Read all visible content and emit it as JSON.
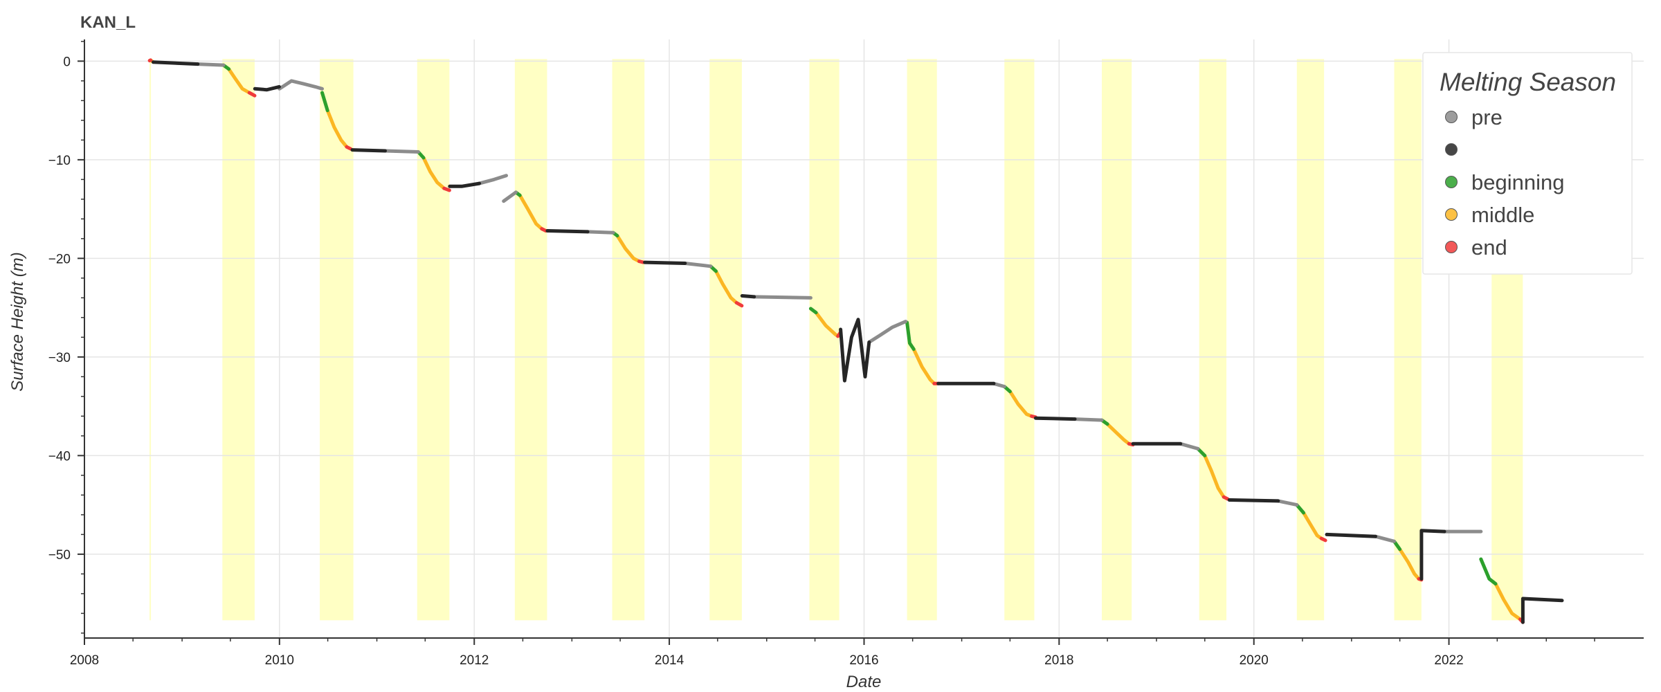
{
  "chart_data": {
    "type": "scatter",
    "title": "KAN_L",
    "xlabel": "Date",
    "ylabel": "Surface Height (m)",
    "xlim": [
      "2008-01-01",
      "2024-01-01"
    ],
    "ylim": [
      -58.5,
      2.2
    ],
    "grid": true,
    "x_ticks": [
      "2008",
      "2010",
      "2012",
      "2014",
      "2016",
      "2018",
      "2020",
      "2022"
    ],
    "y_ticks": [
      0,
      -10,
      -20,
      -30,
      -40,
      -50
    ],
    "y_tick_labels": [
      "0",
      "−10",
      "−20",
      "−30",
      "−40",
      "−50"
    ],
    "legend": {
      "title": "Melting Season",
      "position": "top-right",
      "entries": [
        {
          "label": "pre",
          "color": "#8c8c8c"
        },
        {
          "label": "",
          "color": "#262626"
        },
        {
          "label": "beginning",
          "color": "#2ca02c"
        },
        {
          "label": "middle",
          "color": "#fbb623"
        },
        {
          "label": "end",
          "color": "#f03b3b"
        }
      ]
    },
    "melt_band_color": "#ffffc4",
    "melt_bands": [
      [
        "2008-09-01",
        "2008-09-05"
      ],
      [
        "2009-06-01",
        "2009-09-30"
      ],
      [
        "2010-06-01",
        "2010-10-05"
      ],
      [
        "2011-06-01",
        "2011-09-30"
      ],
      [
        "2012-06-01",
        "2012-09-30"
      ],
      [
        "2013-06-01",
        "2013-09-30"
      ],
      [
        "2014-06-01",
        "2014-09-30"
      ],
      [
        "2015-06-10",
        "2015-09-30"
      ],
      [
        "2016-06-10",
        "2016-09-30"
      ],
      [
        "2017-06-10",
        "2017-09-30"
      ],
      [
        "2018-06-10",
        "2018-09-30"
      ],
      [
        "2019-06-10",
        "2019-09-20"
      ],
      [
        "2020-06-10",
        "2020-09-20"
      ],
      [
        "2021-06-10",
        "2021-09-20"
      ],
      [
        "2022-06-10",
        "2022-10-05"
      ]
    ],
    "series": [
      {
        "category": "middle",
        "color": "#fbb623",
        "segments": [
          [
            [
              "2008-09-05",
              0.1
            ],
            [
              "2008-09-15",
              -0.1
            ]
          ],
          [
            [
              "2009-06-25",
              -0.8
            ],
            [
              "2009-07-20",
              -1.8
            ],
            [
              "2009-08-15",
              -2.8
            ],
            [
              "2009-09-10",
              -3.2
            ]
          ],
          [
            [
              "2010-06-30",
              -5.0
            ],
            [
              "2010-07-25",
              -6.7
            ],
            [
              "2010-08-20",
              -8.0
            ],
            [
              "2010-09-10",
              -8.7
            ]
          ],
          [
            [
              "2011-06-25",
              -9.8
            ],
            [
              "2011-07-20",
              -11.2
            ],
            [
              "2011-08-15",
              -12.3
            ],
            [
              "2011-09-10",
              -12.9
            ]
          ],
          [
            [
              "2012-06-20",
              -13.6
            ],
            [
              "2012-07-20",
              -15.0
            ],
            [
              "2012-08-20",
              -16.5
            ],
            [
              "2012-09-10",
              -17.0
            ]
          ],
          [
            [
              "2013-06-20",
              -17.7
            ],
            [
              "2013-07-20",
              -19.0
            ],
            [
              "2013-08-20",
              -20.0
            ],
            [
              "2013-09-10",
              -20.3
            ]
          ],
          [
            [
              "2014-06-25",
              -21.3
            ],
            [
              "2014-07-20",
              -22.6
            ],
            [
              "2014-08-20",
              -24.0
            ],
            [
              "2014-09-10",
              -24.5
            ]
          ],
          [
            [
              "2015-07-05",
              -25.5
            ],
            [
              "2015-08-10",
              -26.8
            ],
            [
              "2015-09-15",
              -27.7
            ],
            [
              "2015-09-25",
              -27.9
            ]
          ],
          [
            [
              "2016-07-05",
              -29.2
            ],
            [
              "2016-08-05",
              -31.0
            ],
            [
              "2016-09-05",
              -32.3
            ],
            [
              "2016-09-20",
              -32.7
            ]
          ],
          [
            [
              "2017-07-01",
              -33.5
            ],
            [
              "2017-08-01",
              -34.8
            ],
            [
              "2017-09-01",
              -35.8
            ],
            [
              "2017-09-20",
              -36.0
            ]
          ],
          [
            [
              "2018-07-01",
              -36.8
            ],
            [
              "2018-08-01",
              -37.6
            ],
            [
              "2018-09-01",
              -38.4
            ],
            [
              "2018-09-20",
              -38.8
            ]
          ],
          [
            [
              "2019-07-01",
              -40.0
            ],
            [
              "2019-07-25",
              -41.5
            ],
            [
              "2019-08-20",
              -43.3
            ],
            [
              "2019-09-10",
              -44.2
            ]
          ],
          [
            [
              "2020-07-05",
              -45.8
            ],
            [
              "2020-08-05",
              -47.2
            ],
            [
              "2020-08-25",
              -48.1
            ],
            [
              "2020-09-10",
              -48.4
            ]
          ],
          [
            [
              "2021-07-01",
              -49.5
            ],
            [
              "2021-08-01",
              -50.8
            ],
            [
              "2021-08-25",
              -52.0
            ],
            [
              "2021-09-10",
              -52.5
            ]
          ],
          [
            [
              "2022-06-25",
              -53.0
            ],
            [
              "2022-07-25",
              -54.6
            ],
            [
              "2022-08-25",
              -56.0
            ],
            [
              "2022-09-25",
              -56.6
            ]
          ]
        ]
      },
      {
        "category": "beginning",
        "color": "#2ca02c",
        "segments": [
          [
            [
              "2009-06-05",
              -0.4
            ],
            [
              "2009-06-25",
              -0.8
            ]
          ],
          [
            [
              "2010-06-10",
              -3.2
            ],
            [
              "2010-06-30",
              -5.0
            ]
          ],
          [
            [
              "2011-06-05",
              -9.2
            ],
            [
              "2011-06-25",
              -9.8
            ]
          ],
          [
            [
              "2012-06-05",
              -13.3
            ],
            [
              "2012-06-20",
              -13.6
            ]
          ],
          [
            [
              "2013-06-05",
              -17.4
            ],
            [
              "2013-06-20",
              -17.7
            ]
          ],
          [
            [
              "2014-06-05",
              -20.8
            ],
            [
              "2014-06-25",
              -21.3
            ]
          ],
          [
            [
              "2015-06-15",
              -25.1
            ],
            [
              "2015-07-05",
              -25.5
            ]
          ],
          [
            [
              "2016-06-10",
              -26.5
            ],
            [
              "2016-06-20",
              -28.6
            ],
            [
              "2016-07-05",
              -29.2
            ]
          ],
          [
            [
              "2017-06-10",
              -33.0
            ],
            [
              "2017-07-01",
              -33.5
            ]
          ],
          [
            [
              "2018-06-10",
              -36.4
            ],
            [
              "2018-07-01",
              -36.8
            ]
          ],
          [
            [
              "2019-06-05",
              -39.3
            ],
            [
              "2019-07-01",
              -40.0
            ]
          ],
          [
            [
              "2020-06-10",
              -45.0
            ],
            [
              "2020-07-05",
              -45.8
            ]
          ],
          [
            [
              "2021-06-10",
              -48.7
            ],
            [
              "2021-07-01",
              -49.5
            ]
          ],
          [
            [
              "2022-05-01",
              -50.5
            ],
            [
              "2022-06-01",
              -52.5
            ],
            [
              "2022-06-25",
              -53.0
            ]
          ]
        ]
      },
      {
        "category": "end",
        "color": "#f03b3b",
        "segments": [
          [
            [
              "2008-09-01",
              0.05
            ],
            [
              "2008-09-05",
              0.1
            ]
          ],
          [
            [
              "2009-09-10",
              -3.2
            ],
            [
              "2009-09-30",
              -3.5
            ]
          ],
          [
            [
              "2010-09-10",
              -8.7
            ],
            [
              "2010-09-25",
              -8.9
            ]
          ],
          [
            [
              "2011-09-10",
              -12.9
            ],
            [
              "2011-09-30",
              -13.1
            ]
          ],
          [
            [
              "2012-09-10",
              -17.0
            ],
            [
              "2012-09-25",
              -17.2
            ]
          ],
          [
            [
              "2013-09-10",
              -20.3
            ],
            [
              "2013-09-25",
              -20.4
            ]
          ],
          [
            [
              "2014-09-10",
              -24.5
            ],
            [
              "2014-09-30",
              -24.8
            ]
          ],
          [
            [
              "2015-09-25",
              -27.9
            ],
            [
              "2015-10-05",
              -27.5
            ]
          ],
          [
            [
              "2016-09-20",
              -32.7
            ],
            [
              "2016-10-05",
              -32.7
            ]
          ],
          [
            [
              "2017-09-20",
              -36.0
            ],
            [
              "2017-10-05",
              -36.1
            ]
          ],
          [
            [
              "2018-09-20",
              -38.8
            ],
            [
              "2018-10-05",
              -38.9
            ]
          ],
          [
            [
              "2019-09-10",
              -44.2
            ],
            [
              "2019-09-25",
              -44.4
            ]
          ],
          [
            [
              "2020-09-10",
              -48.4
            ],
            [
              "2020-09-25",
              -48.6
            ]
          ],
          [
            [
              "2021-09-10",
              -52.5
            ],
            [
              "2021-09-20",
              -52.6
            ]
          ],
          [
            [
              "2022-09-25",
              -56.6
            ],
            [
              "2022-10-05",
              -56.9
            ]
          ]
        ]
      },
      {
        "category": "pre",
        "color": "#8c8c8c",
        "segments": [
          [
            [
              "2009-03-01",
              -0.3
            ],
            [
              "2009-06-05",
              -0.4
            ]
          ],
          [
            [
              "2010-01-01",
              -2.8
            ],
            [
              "2010-02-15",
              -2.0
            ],
            [
              "2010-04-01",
              -2.3
            ],
            [
              "2010-05-15",
              -2.6
            ],
            [
              "2010-06-10",
              -2.8
            ]
          ],
          [
            [
              "2011-02-01",
              -9.1
            ],
            [
              "2011-06-05",
              -9.2
            ]
          ],
          [
            [
              "2012-01-20",
              -12.4
            ],
            [
              "2012-03-15",
              -12.0
            ],
            [
              "2012-04-30",
              -11.6
            ]
          ],
          [
            [
              "2012-04-20",
              -14.2
            ],
            [
              "2012-06-05",
              -13.3
            ]
          ],
          [
            [
              "2013-03-01",
              -17.3
            ],
            [
              "2013-06-05",
              -17.4
            ]
          ],
          [
            [
              "2014-03-01",
              -20.5
            ],
            [
              "2014-06-05",
              -20.8
            ]
          ],
          [
            [
              "2014-11-15",
              -23.9
            ],
            [
              "2015-06-15",
              -24.0
            ]
          ],
          [
            [
              "2016-01-20",
              -28.5
            ],
            [
              "2016-03-01",
              -27.8
            ],
            [
              "2016-04-15",
              -27.0
            ],
            [
              "2016-06-05",
              -26.4
            ]
          ],
          [
            [
              "2017-05-01",
              -32.7
            ],
            [
              "2017-06-10",
              -33.0
            ]
          ],
          [
            [
              "2018-03-01",
              -36.3
            ],
            [
              "2018-06-10",
              -36.4
            ]
          ],
          [
            [
              "2019-04-01",
              -38.8
            ],
            [
              "2019-06-05",
              -39.3
            ]
          ],
          [
            [
              "2020-04-01",
              -44.6
            ],
            [
              "2020-06-10",
              -45.0
            ]
          ],
          [
            [
              "2021-04-01",
              -48.2
            ],
            [
              "2021-06-10",
              -48.7
            ]
          ],
          [
            [
              "2021-12-15",
              -47.7
            ],
            [
              "2022-05-01",
              -47.7
            ]
          ]
        ]
      },
      {
        "category": "",
        "color": "#262626",
        "segments": [
          [
            [
              "2008-09-15",
              -0.1
            ],
            [
              "2009-03-01",
              -0.3
            ]
          ],
          [
            [
              "2009-10-01",
              -2.8
            ],
            [
              "2009-11-15",
              -2.9
            ],
            [
              "2009-12-31",
              -2.6
            ]
          ],
          [
            [
              "2010-10-01",
              -9.0
            ],
            [
              "2011-02-01",
              -9.1
            ]
          ],
          [
            [
              "2011-10-01",
              -12.7
            ],
            [
              "2011-11-15",
              -12.7
            ],
            [
              "2012-01-20",
              -12.4
            ]
          ],
          [
            [
              "2012-10-01",
              -17.2
            ],
            [
              "2013-03-01",
              -17.3
            ]
          ],
          [
            [
              "2013-10-01",
              -20.4
            ],
            [
              "2014-03-01",
              -20.5
            ]
          ],
          [
            [
              "2014-10-01",
              -23.8
            ],
            [
              "2014-11-15",
              -23.9
            ]
          ],
          [
            [
              "2015-10-05",
              -27.2
            ],
            [
              "2015-10-20",
              -32.4
            ],
            [
              "2015-11-15",
              -28.0
            ],
            [
              "2015-12-10",
              -26.2
            ],
            [
              "2016-01-05",
              -32.0
            ],
            [
              "2016-01-20",
              -28.5
            ]
          ],
          [
            [
              "2016-10-05",
              -32.7
            ],
            [
              "2017-05-01",
              -32.7
            ]
          ],
          [
            [
              "2017-10-05",
              -36.2
            ],
            [
              "2018-03-01",
              -36.3
            ]
          ],
          [
            [
              "2018-10-05",
              -38.8
            ],
            [
              "2019-04-01",
              -38.8
            ]
          ],
          [
            [
              "2019-10-01",
              -44.5
            ],
            [
              "2020-04-01",
              -44.6
            ]
          ],
          [
            [
              "2020-09-30",
              -48.0
            ],
            [
              "2021-04-01",
              -48.2
            ]
          ],
          [
            [
              "2021-09-20",
              -52.5
            ],
            [
              "2021-09-20",
              -47.6
            ],
            [
              "2021-12-15",
              -47.7
            ]
          ],
          [
            [
              "2022-10-05",
              -56.9
            ],
            [
              "2022-10-05",
              -54.5
            ],
            [
              "2023-03-01",
              -54.7
            ]
          ]
        ]
      }
    ]
  }
}
